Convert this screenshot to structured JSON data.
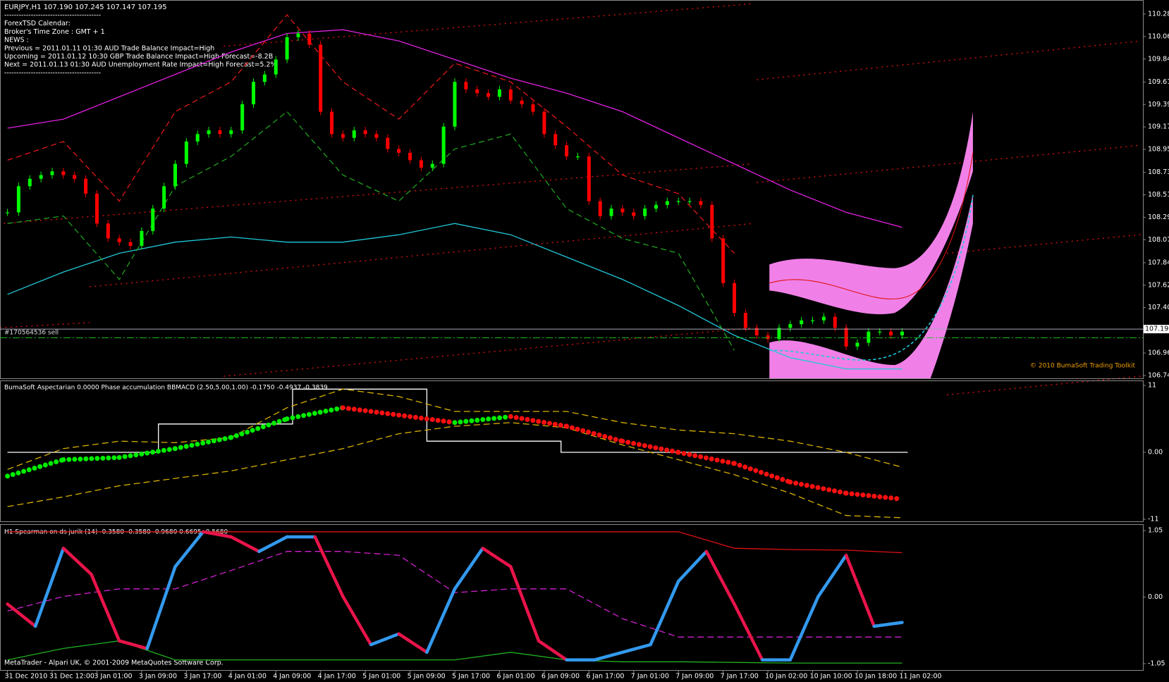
{
  "window": {
    "header": "EURJPY,H1  107.190 107.245 107.147 107.195",
    "news": [
      "----------------------------------------",
      "ForexTSD Calendar:",
      "Broker's Time Zone : GMT + 1",
      "NEWS :",
      "Previous = 2011.01.11 01:30 AUD Trade Balance Impact=High",
      "Upcoming = 2011.01.12 10:30 GBP Trade Balance Impact=High Forecast=-8.2B",
      "Next = 2011.01.13 01:30 AUD Unemployment Rate Impact=High Forecast=5.2%",
      "----------------------------------------"
    ],
    "order_label": "#170564536 sell",
    "copyright": "© 2010 BumaSoft Trading Toolkit",
    "footer": "MetaTrader - Alpari UK, © 2001-2009 MetaQuotes Software Corp.",
    "time_labels": [
      "31 Dec 2010",
      "31 Dec 12:00",
      "3 Jan 01:00",
      "3 Jan 09:00",
      "3 Jan 17:00",
      "4 Jan 01:00",
      "4 Jan 09:00",
      "4 Jan 17:00",
      "5 Jan 01:00",
      "5 Jan 09:00",
      "5 Jan 17:00",
      "6 Jan 01:00",
      "6 Jan 09:00",
      "6 Jan 17:00",
      "7 Jan 01:00",
      "7 Jan 09:00",
      "7 Jan 17:00",
      "10 Jan 02:00",
      "10 Jan 10:00",
      "10 Jan 18:00",
      "11 Jan 02:00"
    ]
  },
  "chart_data": [
    {
      "type": "candlestick",
      "ylim": [
        106.74,
        110.28
      ],
      "yticks": [
        {
          "value": 110.28,
          "label": "110.280"
        },
        {
          "value": 110.06,
          "label": "110.060"
        },
        {
          "value": 109.84,
          "label": "109.840"
        },
        {
          "value": 109.615,
          "label": "109.615"
        },
        {
          "value": 109.395,
          "label": "109.395"
        },
        {
          "value": 109.175,
          "label": "109.175"
        },
        {
          "value": 108.955,
          "label": "108.955"
        },
        {
          "value": 108.73,
          "label": "108.730"
        },
        {
          "value": 108.51,
          "label": "108.510"
        },
        {
          "value": 108.29,
          "label": "108.290"
        },
        {
          "value": 108.07,
          "label": "108.070"
        },
        {
          "value": 107.845,
          "label": "107.845"
        },
        {
          "value": 107.625,
          "label": "107.625"
        },
        {
          "value": 107.405,
          "label": "107.405"
        },
        {
          "value": 106.96,
          "label": "106.960"
        },
        {
          "value": 106.74,
          "label": "106.740"
        }
      ],
      "current_price": 107.195,
      "order_line": 107.11,
      "up_color": "#00ff00",
      "down_color": "#ff0000",
      "candles": {
        "x": [
          0,
          2,
          4,
          6,
          8,
          10,
          12,
          14,
          16,
          18,
          20,
          22,
          24,
          26,
          28,
          30,
          32,
          34,
          36,
          38,
          40,
          42,
          44,
          46,
          48,
          50,
          52,
          54,
          56,
          58,
          60,
          62,
          64,
          66,
          68,
          70,
          72,
          74,
          76,
          78,
          80,
          82,
          84,
          86,
          88,
          90,
          92,
          94,
          96,
          98,
          100,
          102,
          104,
          106,
          108,
          110,
          112,
          114,
          116,
          118,
          120,
          122,
          124,
          126,
          128,
          130,
          132,
          134,
          136,
          138,
          140,
          142,
          144,
          146,
          148,
          150,
          152,
          154,
          156,
          158,
          160
        ],
        "close": [
          108.338,
          108.594,
          108.667,
          108.703,
          108.74,
          108.703,
          108.667,
          108.521,
          108.229,
          108.083,
          108.046,
          108.01,
          108.156,
          108.375,
          108.594,
          108.813,
          109.032,
          109.105,
          109.141,
          109.105,
          109.141,
          109.397,
          109.616,
          109.689,
          109.835,
          110.054,
          110.09,
          109.981,
          109.324,
          109.105,
          109.068,
          109.141,
          109.105,
          109.068,
          108.959,
          108.922,
          108.849,
          108.776,
          108.813,
          109.178,
          109.616,
          109.543,
          109.506,
          109.47,
          109.543,
          109.433,
          109.397,
          109.324,
          109.105,
          108.995,
          108.886,
          108.886,
          108.448,
          108.302,
          108.375,
          108.338,
          108.302,
          108.375,
          108.411,
          108.448,
          108.448,
          108.448,
          108.411,
          108.083,
          107.645,
          107.353,
          107.207,
          107.134,
          107.097,
          107.207,
          107.243,
          107.28,
          107.28,
          107.316,
          107.207,
          107.024,
          107.061,
          107.17,
          107.17,
          107.134,
          107.17
        ]
      },
      "series": [
        {
          "color": "#e020e0",
          "dash": "none",
          "x": [
            0,
            10,
            20,
            30,
            40,
            50,
            60,
            70,
            80,
            90,
            100,
            110,
            120,
            130,
            140,
            150,
            160
          ],
          "values": [
            109.163,
            109.251,
            109.47,
            109.689,
            109.908,
            110.09,
            110.127,
            110.017,
            109.835,
            109.652,
            109.506,
            109.324,
            109.068,
            108.813,
            108.557,
            108.338,
            108.192
          ]
        },
        {
          "color": "#20c8d8",
          "dash": "none",
          "x": [
            0,
            10,
            20,
            30,
            40,
            50,
            60,
            70,
            80,
            90,
            100,
            110,
            120,
            130,
            140,
            150,
            160
          ],
          "values": [
            107.535,
            107.754,
            107.937,
            108.046,
            108.097,
            108.046,
            108.046,
            108.119,
            108.229,
            108.119,
            107.9,
            107.681,
            107.426,
            107.134,
            106.915,
            106.805,
            106.805
          ]
        },
        {
          "color": "#e01818",
          "dash": "8 5",
          "x": [
            0,
            10,
            20,
            30,
            40,
            50,
            60,
            70,
            80,
            90,
            100,
            110,
            120,
            130,
            140,
            150,
            160
          ],
          "values": [
            108.849,
            109.032,
            108.448,
            109.324,
            109.616,
            110.273,
            109.616,
            109.251,
            109.798,
            109.616,
            109.178,
            108.703,
            108.521,
            107.937,
            null,
            null,
            null
          ]
        },
        {
          "color": "#20a020",
          "dash": "8 5",
          "x": [
            0,
            10,
            20,
            30,
            40,
            50,
            60,
            70,
            80,
            90,
            100,
            110,
            120,
            130,
            140,
            150,
            160
          ],
          "values": [
            108.229,
            108.302,
            107.681,
            108.594,
            108.886,
            109.324,
            108.703,
            108.448,
            108.959,
            109.105,
            108.375,
            108.083,
            107.937,
            106.988,
            null,
            null,
            null
          ]
        }
      ]
    },
    {
      "type": "indicator",
      "title": "BumaSoft Aspectarian 0.0000  Phase accumulation BBMACD (2.50,5.00,1.00) -0.1750 -0.4937 -0.3839",
      "ylim": [
        -11,
        11
      ],
      "yticks": [
        11,
        {
          "value": 0,
          "label": "0.00"
        },
        -11
      ],
      "series": [
        {
          "style": "line",
          "color": "#ffffff",
          "dash": "none",
          "x": [
            0,
            27,
            27,
            51,
            51,
            75,
            75,
            99,
            99,
            161
          ],
          "values": [
            0,
            0,
            4.65,
            4.65,
            10.39,
            10.39,
            1.83,
            1.83,
            0,
            0
          ]
        },
        {
          "style": "line",
          "color": "#d8b000",
          "dash": "9 5",
          "x": [
            0,
            10,
            20,
            30,
            40,
            50,
            60,
            70,
            80,
            90,
            100,
            110,
            120,
            130,
            140,
            150,
            160
          ],
          "values": [
            -2.81,
            0.61,
            1.83,
            1.59,
            2.44,
            7.33,
            10.39,
            9.17,
            6.72,
            6.72,
            6.72,
            4.89,
            3.67,
            3.06,
            1.83,
            0,
            -2.44
          ]
        },
        {
          "style": "line",
          "color": "#d8b000",
          "dash": "9 5",
          "x": [
            0,
            10,
            20,
            30,
            40,
            50,
            60,
            70,
            80,
            90,
            100,
            110,
            120,
            130,
            140,
            150,
            160
          ],
          "values": [
            -8.92,
            -7.33,
            -5.5,
            -4.28,
            -3.06,
            -1.22,
            0.61,
            3.06,
            4.28,
            4.89,
            4.03,
            1.22,
            -1.22,
            -3.67,
            -6.72,
            -10.39,
            -10.76
          ]
        },
        {
          "style": "dots",
          "up_color": "#00ee00",
          "down_color": "#ff1010",
          "x": [
            0,
            10,
            20,
            30,
            40,
            50,
            60,
            70,
            80,
            90,
            100,
            110,
            120,
            130,
            140,
            150,
            160
          ],
          "values": [
            -3.91,
            -1.22,
            -0.86,
            0.61,
            2.44,
            5.5,
            7.33,
            6.11,
            4.89,
            5.87,
            4.28,
            1.83,
            0,
            -1.83,
            -4.89,
            -6.72,
            -7.7
          ]
        }
      ]
    },
    {
      "type": "indicator",
      "title": "H1 Spearman on  ds jurik (14) -0.3580 -0.3580 -0.9680 0.6695 -0.5680",
      "ylim": [
        -1.05,
        1.05
      ],
      "yticks": [
        1.05,
        {
          "value": 0,
          "label": "0.00"
        },
        -1.05
      ],
      "series": [
        {
          "style": "line",
          "color": "#e01010",
          "dash": "none",
          "x": [
            0,
            10,
            20,
            30,
            40,
            50,
            60,
            70,
            80,
            90,
            100,
            110,
            120,
            130,
            140,
            150,
            160
          ],
          "values": [
            1.03,
            1.03,
            1.03,
            1.03,
            1.03,
            1.03,
            1.03,
            1.03,
            1.03,
            1.03,
            1.03,
            1.03,
            1.03,
            0.77,
            0.75,
            0.74,
            0.7
          ]
        },
        {
          "style": "line",
          "color": "#20b020",
          "dash": "none",
          "x": [
            0,
            10,
            20,
            30,
            40,
            50,
            60,
            70,
            80,
            90,
            100,
            110,
            120,
            130,
            140,
            150,
            160
          ],
          "values": [
            -0.99,
            -0.81,
            -0.69,
            -0.99,
            -0.99,
            -0.99,
            -0.99,
            -0.99,
            -0.99,
            -0.87,
            -0.99,
            -1.02,
            -1.02,
            -1.03,
            -1.04,
            -1.04,
            -1.04
          ]
        },
        {
          "style": "line",
          "color": "#d020d0",
          "dash": "9 5",
          "x": [
            0,
            10,
            20,
            30,
            40,
            50,
            60,
            70,
            80,
            90,
            100,
            110,
            120,
            130,
            140,
            150,
            160
          ],
          "values": [
            -0.22,
            0.01,
            0.13,
            0.13,
            0.42,
            0.72,
            0.72,
            0.66,
            0.07,
            0.13,
            0.13,
            -0.34,
            -0.63,
            -0.63,
            -0.63,
            -0.63,
            -0.63
          ]
        },
        {
          "style": "thick",
          "up_color": "#3399ee",
          "down_color": "#e8144a",
          "x": [
            0,
            5,
            10,
            15,
            20,
            25,
            30,
            35,
            40,
            45,
            50,
            55,
            60,
            65,
            70,
            75,
            80,
            85,
            90,
            95,
            100,
            105,
            110,
            115,
            120,
            125,
            130,
            135,
            140,
            145,
            150,
            155,
            160
          ],
          "values": [
            -0.11,
            -0.46,
            0.77,
            0.36,
            -0.69,
            -0.81,
            0.48,
            1.03,
            0.95,
            0.72,
            0.95,
            0.95,
            0.01,
            -0.75,
            -0.58,
            -0.87,
            0.13,
            0.77,
            0.48,
            -0.69,
            -0.99,
            -0.99,
            -0.87,
            -0.75,
            0.25,
            0.72,
            -0.11,
            -0.99,
            -0.99,
            0.01,
            0.66,
            -0.46,
            -0.4
          ]
        }
      ]
    }
  ]
}
